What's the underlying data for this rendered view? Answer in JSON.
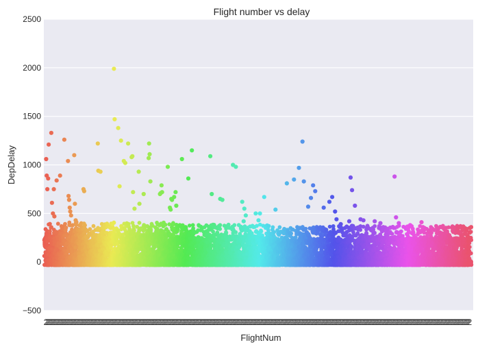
{
  "chart_data": {
    "type": "scatter",
    "title": "Flight number vs delay",
    "xlabel": "FlightNum",
    "ylabel": "DepDelay",
    "ylim": [
      -500,
      2500
    ],
    "yticks": [
      -500,
      0,
      500,
      1000,
      1500,
      2000,
      2500
    ],
    "ytick_labels": [
      "−500",
      "0",
      "500",
      "1000",
      "1500",
      "2000",
      "2500"
    ],
    "x_tick_labels_legible": false,
    "grid": true,
    "style": "seaborn darkgrid stripplot, one hue per flight number",
    "background_color": "#eaeaf2",
    "series": [
      {
        "x": [
          0.2,
          0.6,
          1.0,
          1.6,
          2.0,
          3.8,
          4.3,
          5.0,
          5.6,
          6.0,
          7.6,
          10.0,
          13.0,
          15.6,
          16.0,
          16.4,
          16.8,
          17.2,
          17.8,
          20.0,
          20.5,
          21.0,
          21.5,
          26.5,
          27.0,
          36.6,
          37.0,
          38.5,
          48.0,
          48.5,
          51.0,
          52.0,
          53.0,
          55.0,
          56.0,
          58.0,
          60.5,
          61.0,
          61.5,
          62.5,
          65.5,
          66.0,
          69.0,
          72.5,
          72.8,
          73.2,
          73.7,
          80.5,
          81.0,
          81.6,
          82.0,
          86.0,
          87.5,
          88.0,
          88.5,
          89.0,
          90.5,
          91.5,
          92.0,
          96.0,
          100.5,
          103.0,
          116.0,
          117.0,
          123.0,
          124.5,
          132.0,
          134.0,
          138.5,
          139.5,
          140.0,
          141.0,
          148.0,
          150.0,
          151.0,
          154.0,
          162.0,
          170.0,
          175.0,
          178.5,
          181.0,
          182.0,
          185.0,
          187.0,
          188.5,
          190.0,
          196.0,
          200.0,
          202.0,
          204.0,
          205.0,
          208.0,
          212.0,
          214.0,
          215.0,
          216.0,
          218.0,
          222.0,
          224.0,
          232.0,
          235.0,
          236.0,
          238.0,
          246.0,
          247.0,
          249.0,
          257.0,
          265.0,
          266.0,
          272.0,
          274.0,
          282.0,
          287.0,
          291.0,
          292.0,
          296.0,
          299.0,
          300.0
        ],
        "y": [
          1060,
          890,
          750,
          860,
          1210,
          1330,
          610,
          500,
          750,
          470,
          840,
          890,
          1260,
          1040,
          680,
          640,
          560,
          520,
          480,
          1100,
          600,
          430,
          410,
          750,
          730,
          1220,
          940,
          930,
          1990,
          1470,
          1380,
          780,
          1250,
          1040,
          1020,
          1220,
          1080,
          1090,
          720,
          550,
          930,
          600,
          700,
          1070,
          1220,
          1110,
          830,
          700,
          710,
          790,
          720,
          980,
          560,
          540,
          650,
          640,
          670,
          720,
          580,
          1060,
          860,
          1150,
          1090,
          700,
          650,
          640,
          1000,
          980,
          620,
          420,
          550,
          480,
          500,
          430,
          500,
          670,
          540,
          810,
          850,
          970,
          1240,
          830,
          570,
          660,
          790,
          730,
          560,
          620,
          670,
          520,
          440,
          390,
          360,
          420,
          870,
          740,
          580,
          440,
          430,
          420,
          350,
          400,
          360,
          880,
          460,
          400,
          380,
          410,
          360,
          340,
          330,
          300,
          320,
          300,
          310,
          290,
          350,
          360
        ]
      }
    ]
  }
}
